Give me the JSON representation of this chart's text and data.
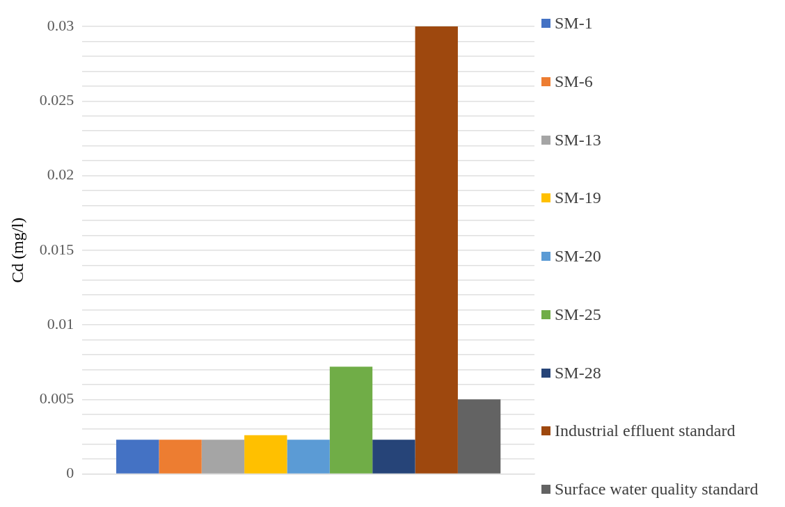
{
  "chart_data": {
    "type": "bar",
    "ylabel": "Cd (mg/l)",
    "categories": [
      null
    ],
    "series": [
      {
        "name": "SM-1",
        "color": "#4472c4",
        "values": [
          0.0023
        ]
      },
      {
        "name": "SM-6",
        "color": "#ed7d31",
        "values": [
          0.0023
        ]
      },
      {
        "name": "SM-13",
        "color": "#a5a5a5",
        "values": [
          0.0023
        ]
      },
      {
        "name": "SM-19",
        "color": "#ffc000",
        "values": [
          0.0026
        ]
      },
      {
        "name": "SM-20",
        "color": "#5b9bd5",
        "values": [
          0.0023
        ]
      },
      {
        "name": "SM-25",
        "color": "#70ad47",
        "values": [
          0.0072
        ]
      },
      {
        "name": "SM-28",
        "color": "#264478",
        "values": [
          0.0023
        ]
      },
      {
        "name": "Industrial effluent standard",
        "color": "#9e480e",
        "values": [
          0.03
        ]
      },
      {
        "name": "Surface water quality standard",
        "color": "#636363",
        "values": [
          0.005
        ]
      }
    ],
    "ylim": [
      0,
      0.03
    ],
    "yticks": [
      0,
      {
        "value": 0.001,
        "label": null
      },
      {
        "value": 0.002,
        "label": null
      },
      {
        "value": 0.003,
        "label": null
      },
      {
        "value": 0.004,
        "label": null
      },
      0.005,
      {
        "value": 0.006,
        "label": null
      },
      {
        "value": 0.007,
        "label": null
      },
      {
        "value": 0.008,
        "label": null
      },
      {
        "value": 0.009,
        "label": null
      },
      0.01,
      {
        "value": 0.011,
        "label": null
      },
      {
        "value": 0.012,
        "label": null
      },
      {
        "value": 0.013,
        "label": null
      },
      {
        "value": 0.014,
        "label": null
      },
      0.015,
      {
        "value": 0.016,
        "label": null
      },
      {
        "value": 0.017,
        "label": null
      },
      {
        "value": 0.018,
        "label": null
      },
      {
        "value": 0.019,
        "label": null
      },
      0.02,
      {
        "value": 0.021,
        "label": null
      },
      {
        "value": 0.022,
        "label": null
      },
      {
        "value": 0.023,
        "label": null
      },
      {
        "value": 0.024,
        "label": null
      },
      0.025,
      {
        "value": 0.026,
        "label": null
      },
      {
        "value": 0.027,
        "label": null
      },
      {
        "value": 0.028,
        "label": null
      },
      {
        "value": 0.029,
        "label": null
      },
      0.03
    ],
    "grid": "y",
    "legend": "right"
  }
}
